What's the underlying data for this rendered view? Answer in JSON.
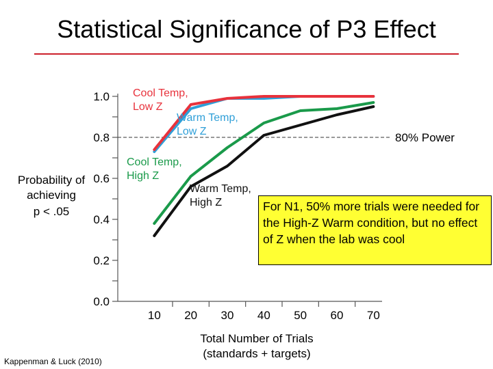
{
  "slide": {
    "title": "Statistical Significance of P3 Effect",
    "citation": "Kappenman & Luck (2010)",
    "callout": "For N1, 50% more trials were needed for the High-Z Warm condition, but no effect of Z when the lab was cool"
  },
  "colors": {
    "title_rule": "#cc1f2a",
    "callout_bg": "#ffff33"
  },
  "chart_data": {
    "type": "line",
    "title": "",
    "xlabel": "Total Number of Trials (standards + targets)",
    "xlabel_lines": [
      "Total Number of Trials",
      "(standards + targets)"
    ],
    "ylabel": "Probability of achieving p < .05",
    "ylabel_lines": [
      "Probability of",
      "achieving",
      "p < .05"
    ],
    "x": [
      10,
      20,
      30,
      40,
      50,
      60,
      70
    ],
    "x_ticks": [
      "10",
      "20",
      "30",
      "40",
      "50",
      "60",
      "70"
    ],
    "y_ticks": [
      "0.0",
      "0.2",
      "0.4",
      "0.6",
      "0.8",
      "1.0"
    ],
    "xlim": [
      0,
      75
    ],
    "ylim": [
      0,
      1
    ],
    "grid": false,
    "reference_line": {
      "y": 0.8,
      "label": "80%  Power"
    },
    "series": [
      {
        "name": "Cool Temp, Low Z",
        "label_lines": [
          "Cool Temp,",
          "Low Z"
        ],
        "color": "#e8323c",
        "values": [
          0.74,
          0.96,
          0.99,
          1.0,
          1.0,
          1.0,
          1.0
        ]
      },
      {
        "name": "Warm Temp, Low Z",
        "label_lines": [
          "Warm Temp,",
          "Low Z"
        ],
        "color": "#2f9fd8",
        "values": [
          0.73,
          0.94,
          0.99,
          0.99,
          1.0,
          1.0,
          1.0
        ]
      },
      {
        "name": "Cool Temp, High Z",
        "label_lines": [
          "Cool Temp,",
          "High Z"
        ],
        "color": "#1a9a4a",
        "values": [
          0.38,
          0.61,
          0.75,
          0.87,
          0.93,
          0.94,
          0.97
        ]
      },
      {
        "name": "Warm Temp, High Z",
        "label_lines": [
          "Warm Temp,",
          "High Z"
        ],
        "color": "#111111",
        "values": [
          0.32,
          0.56,
          0.66,
          0.81,
          0.86,
          0.91,
          0.95
        ]
      }
    ]
  }
}
